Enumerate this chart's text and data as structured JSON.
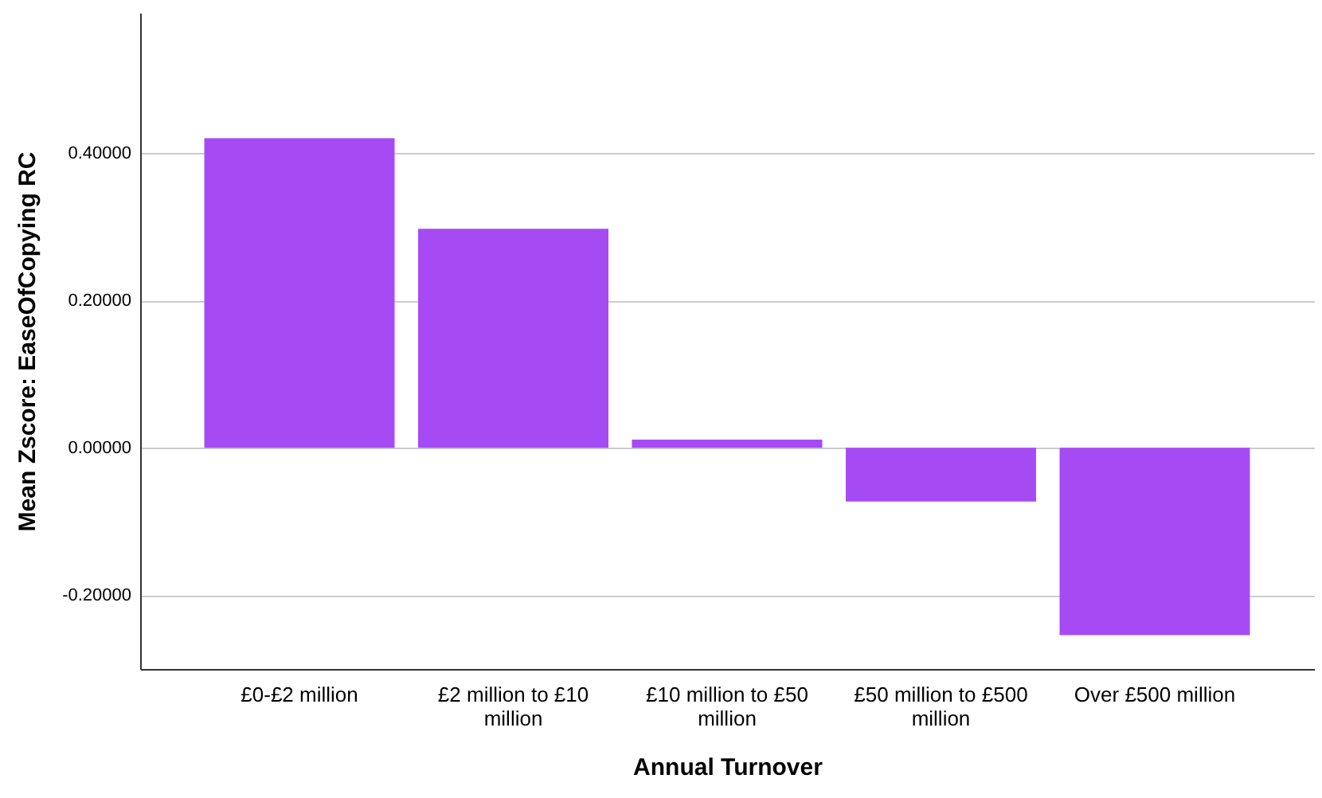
{
  "chart_data": {
    "type": "bar",
    "xlabel": "Annual Turnover",
    "ylabel": "Mean Zscore:  EaseOfCopying RC",
    "categories": [
      "£0-£2 million",
      "£2 million to £10 million",
      "£10 million to £50 million",
      "£50 million to £500 million",
      "Over £500 million"
    ],
    "values": [
      0.42,
      0.297,
      0.011,
      -0.073,
      -0.254
    ],
    "color": "#a64bf4",
    "ylim": [
      -0.3,
      0.59
    ],
    "yticks": [
      {
        "value": -0.2,
        "label": "-0.20000"
      },
      {
        "value": 0,
        "label": "0.00000"
      },
      {
        "value": 0.2,
        "label": "0.20000"
      },
      {
        "value": 0.4,
        "label": "0.40000"
      }
    ],
    "grid": "y"
  }
}
